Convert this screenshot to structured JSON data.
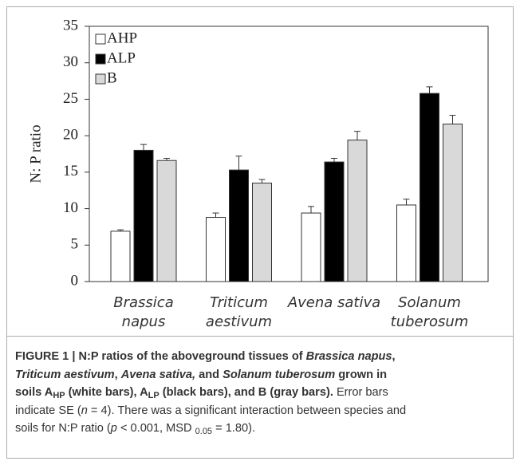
{
  "chart_data": {
    "type": "bar",
    "ylabel": "N: P ratio",
    "categories": [
      [
        "Brassica",
        "napus"
      ],
      [
        "Triticum",
        "aestivum"
      ],
      [
        "Avena sativa"
      ],
      [
        "Solanum",
        "tuberosum"
      ]
    ],
    "series": [
      {
        "name": "AHP",
        "color": "#ffffff",
        "values": [
          6.9,
          8.8,
          9.4,
          10.5
        ],
        "errors": [
          0.2,
          0.6,
          0.9,
          0.8
        ]
      },
      {
        "name": "ALP",
        "color": "#000000",
        "values": [
          18.0,
          15.3,
          16.4,
          25.8
        ],
        "errors": [
          0.8,
          1.9,
          0.5,
          0.9
        ]
      },
      {
        "name": "B",
        "color": "#d9d9d9",
        "values": [
          16.6,
          13.5,
          19.4,
          21.6
        ],
        "errors": [
          0.3,
          0.5,
          1.2,
          1.2
        ]
      }
    ],
    "ylim": [
      0,
      35
    ],
    "yticks": [
      0,
      5,
      10,
      15,
      20,
      25,
      30,
      35
    ],
    "legend": "upper left"
  },
  "caption": {
    "lines": [
      [
        {
          "text": "FIGURE 1 | N:P ratios of the aboveground tissues of ",
          "style": "b"
        },
        {
          "text": "Brassica napus",
          "style": "bi"
        },
        {
          "text": ",",
          "style": "b"
        }
      ],
      [
        {
          "text": "Triticum aestivum",
          "style": "bi"
        },
        {
          "text": ", ",
          "style": "b"
        },
        {
          "text": "Avena sativa,",
          "style": "bi"
        },
        {
          "text": " and ",
          "style": "b"
        },
        {
          "text": "Solanum tuberosum",
          "style": "bi"
        },
        {
          "text": " grown in",
          "style": "b"
        }
      ],
      [
        {
          "text": "soils A",
          "style": "b"
        },
        {
          "text": "HP",
          "style": "bsub"
        },
        {
          "text": " (white bars), A",
          "style": "b"
        },
        {
          "text": "LP",
          "style": "bsub"
        },
        {
          "text": " (black bars), and B (gray bars).",
          "style": "b"
        },
        {
          "text": " Error bars",
          "style": "n"
        }
      ],
      [
        {
          "text": "indicate SE (",
          "style": "n"
        },
        {
          "text": "n",
          "style": "i"
        },
        {
          "text": " = 4). There was a significant interaction between species and",
          "style": "n"
        }
      ],
      [
        {
          "text": "soils for N:P ratio (",
          "style": "n"
        },
        {
          "text": "p",
          "style": "i"
        },
        {
          "text": " < 0.001, MSD ",
          "style": "n"
        },
        {
          "text": "0.05",
          "style": "sub"
        },
        {
          "text": " = 1.80).",
          "style": "n"
        }
      ]
    ]
  }
}
